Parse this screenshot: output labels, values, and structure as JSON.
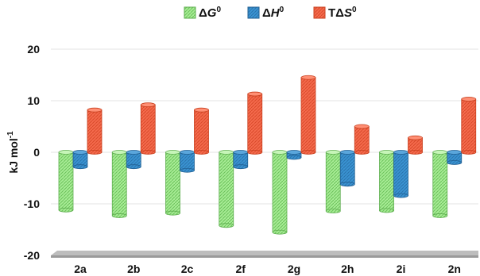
{
  "chart_data": {
    "type": "bar",
    "categories": [
      "2a",
      "2b",
      "2c",
      "2f",
      "2g",
      "2h",
      "2i",
      "2n"
    ],
    "series": [
      {
        "name": "ΔG0",
        "legend": {
          "delta": "Δ",
          "symbol": "G",
          "sup": "0"
        },
        "color": "#7fd66f",
        "values": [
          -11.2,
          -12.3,
          -11.8,
          -14.2,
          -15.5,
          -11.4,
          -11.3,
          -12.3
        ]
      },
      {
        "name": "ΔH0",
        "legend": {
          "delta": "Δ",
          "symbol": "H",
          "sup": "0"
        },
        "color": "#2f86c8",
        "values": [
          -2.8,
          -2.8,
          -3.5,
          -2.8,
          -1.0,
          -6.2,
          -8.4,
          -2.0
        ]
      },
      {
        "name": "TΔS0",
        "legend": {
          "delta": "TΔ",
          "symbol": "S",
          "sup": "0"
        },
        "color": "#f0573a",
        "values": [
          8.2,
          9.2,
          8.2,
          11.3,
          14.5,
          5.0,
          2.8,
          10.3
        ]
      }
    ],
    "ylabel": {
      "main": "kJ mol",
      "sup": "-1"
    },
    "ylim": [
      -20,
      20
    ],
    "yticks": [
      "-20",
      "-10",
      "0",
      "10",
      "20"
    ],
    "ytick_values": [
      -20,
      -10,
      0,
      10,
      20
    ],
    "grid": true,
    "legend_position": "top"
  }
}
